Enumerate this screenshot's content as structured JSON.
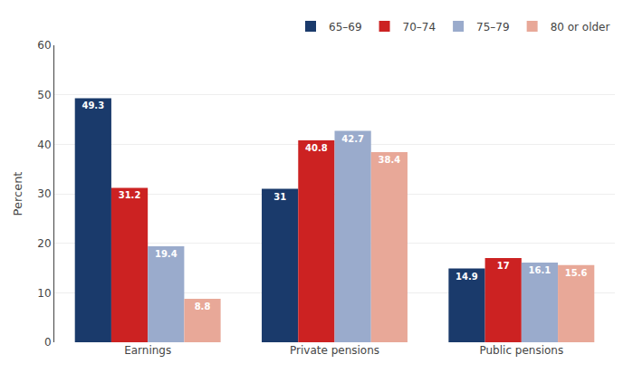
{
  "chart_data": {
    "type": "bar",
    "categories": [
      "Earnings",
      "Private pensions",
      "Public pensions"
    ],
    "series": [
      {
        "name": "65–69",
        "color": "#1a3a6b",
        "values": [
          49.3,
          31.0,
          14.9
        ]
      },
      {
        "name": "70–74",
        "color": "#cc2222",
        "values": [
          31.2,
          40.8,
          17.0
        ]
      },
      {
        "name": "75–79",
        "color": "#9aabcc",
        "values": [
          19.4,
          42.7,
          16.1
        ]
      },
      {
        "name": "80 or older",
        "color": "#e8a898",
        "values": [
          8.8,
          38.4,
          15.6
        ]
      }
    ],
    "ylabel": "Percent",
    "ylim": [
      0,
      60
    ],
    "yticks": [
      0,
      10,
      20,
      30,
      40,
      50,
      60
    ],
    "grid": true,
    "legend": "top right",
    "data_labels": true
  }
}
